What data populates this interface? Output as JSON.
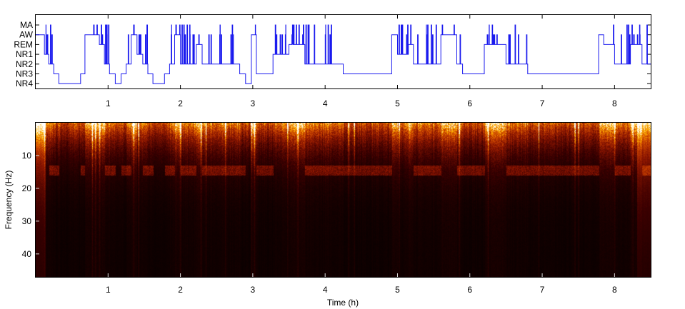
{
  "chart_data": [
    {
      "type": "line",
      "name": "hypnogram",
      "x": [
        0.0,
        0.12,
        0.18,
        0.25,
        0.32,
        0.4,
        0.48,
        0.55,
        0.62,
        0.68,
        0.75,
        0.82,
        0.88,
        0.95,
        1.02,
        1.1,
        1.18,
        1.25,
        1.32,
        1.4,
        1.48,
        1.55,
        1.62,
        1.7,
        1.78,
        1.85,
        1.92,
        2.0,
        2.08,
        2.15,
        2.22,
        2.3,
        2.38,
        2.45,
        2.52,
        2.6,
        2.68,
        2.75,
        2.82,
        2.9,
        2.98,
        3.05,
        3.12,
        3.2,
        3.28,
        3.35,
        3.42,
        3.5,
        3.58,
        3.65,
        3.72,
        3.8,
        3.88,
        3.95,
        4.02,
        4.1,
        4.18,
        4.25,
        4.32,
        4.4,
        4.48,
        4.55,
        4.62,
        4.7,
        4.78,
        4.85,
        4.92,
        5.0,
        5.08,
        5.15,
        5.22,
        5.3,
        5.38,
        5.45,
        5.52,
        5.6,
        5.68,
        5.75,
        5.82,
        5.9,
        5.98,
        6.05,
        6.12,
        6.2,
        6.28,
        6.35,
        6.42,
        6.5,
        6.58,
        6.65,
        6.72,
        6.8,
        6.88,
        6.95,
        7.02,
        7.1,
        7.18,
        7.25,
        7.32,
        7.4,
        7.48,
        7.55,
        7.62,
        7.7,
        7.78,
        7.85,
        7.92,
        8.0,
        8.08,
        8.15,
        8.22,
        8.3,
        8.38
      ],
      "y_stage_index": [
        1,
        3,
        4,
        5,
        6,
        6,
        6,
        6,
        5,
        1,
        1,
        1,
        2,
        4,
        5,
        6,
        5,
        4,
        1,
        3,
        4,
        5,
        6,
        6,
        5,
        4,
        1,
        4,
        4,
        4,
        2,
        4,
        4,
        4,
        4,
        4,
        4,
        4,
        5,
        6,
        1,
        5,
        5,
        5,
        3,
        3,
        3,
        2,
        2,
        2,
        4,
        4,
        4,
        4,
        4,
        4,
        4,
        5,
        5,
        5,
        5,
        5,
        5,
        5,
        5,
        5,
        1,
        3,
        3,
        2,
        4,
        4,
        4,
        4,
        4,
        1,
        1,
        1,
        4,
        5,
        5,
        5,
        5,
        2,
        2,
        2,
        2,
        4,
        4,
        4,
        4,
        5,
        5,
        5,
        5,
        5,
        5,
        5,
        5,
        5,
        5,
        5,
        5,
        5,
        1,
        2,
        2,
        4,
        4,
        4,
        2,
        2,
        4
      ],
      "stage_labels": [
        "MA",
        "AW",
        "REM",
        "NR1",
        "NR2",
        "NR3",
        "NR4"
      ],
      "xlim": [
        0,
        8.5
      ],
      "x_ticks": [
        1,
        2,
        3,
        4,
        5,
        6,
        7,
        8
      ],
      "x_tick_labels": [
        "1",
        "2",
        "3",
        "4",
        "5",
        "6",
        "7",
        "8"
      ],
      "xlabel": "",
      "ylabel": "",
      "series_color": "#1a1aee",
      "grid": false
    },
    {
      "type": "heatmap",
      "name": "spectrogram",
      "xlim": [
        0,
        8.5
      ],
      "ylim": [
        0,
        47
      ],
      "y_reversed": true,
      "x_ticks": [
        1,
        2,
        3,
        4,
        5,
        6,
        7,
        8
      ],
      "x_tick_labels": [
        "1",
        "2",
        "3",
        "4",
        "5",
        "6",
        "7",
        "8"
      ],
      "y_ticks": [
        10,
        20,
        30,
        40
      ],
      "y_tick_labels": [
        "10",
        "20",
        "30",
        "40"
      ],
      "xlabel": "Time (h)",
      "ylabel": "Frequency (Hz)",
      "colormap": [
        "#000000",
        "#3b0000",
        "#8b1500",
        "#d24a00",
        "#ffb300",
        "#ffffff"
      ],
      "spindle_band_hz": [
        13,
        16
      ],
      "artifact_columns_h": [
        0.12,
        0.78,
        0.82,
        0.88,
        1.35,
        1.42,
        2.0,
        2.28,
        2.35,
        2.62,
        2.98,
        3.02,
        3.48,
        3.62,
        4.32,
        4.4,
        5.02,
        5.85,
        6.25,
        6.95,
        7.45,
        7.5,
        8.0,
        8.25
      ]
    }
  ]
}
